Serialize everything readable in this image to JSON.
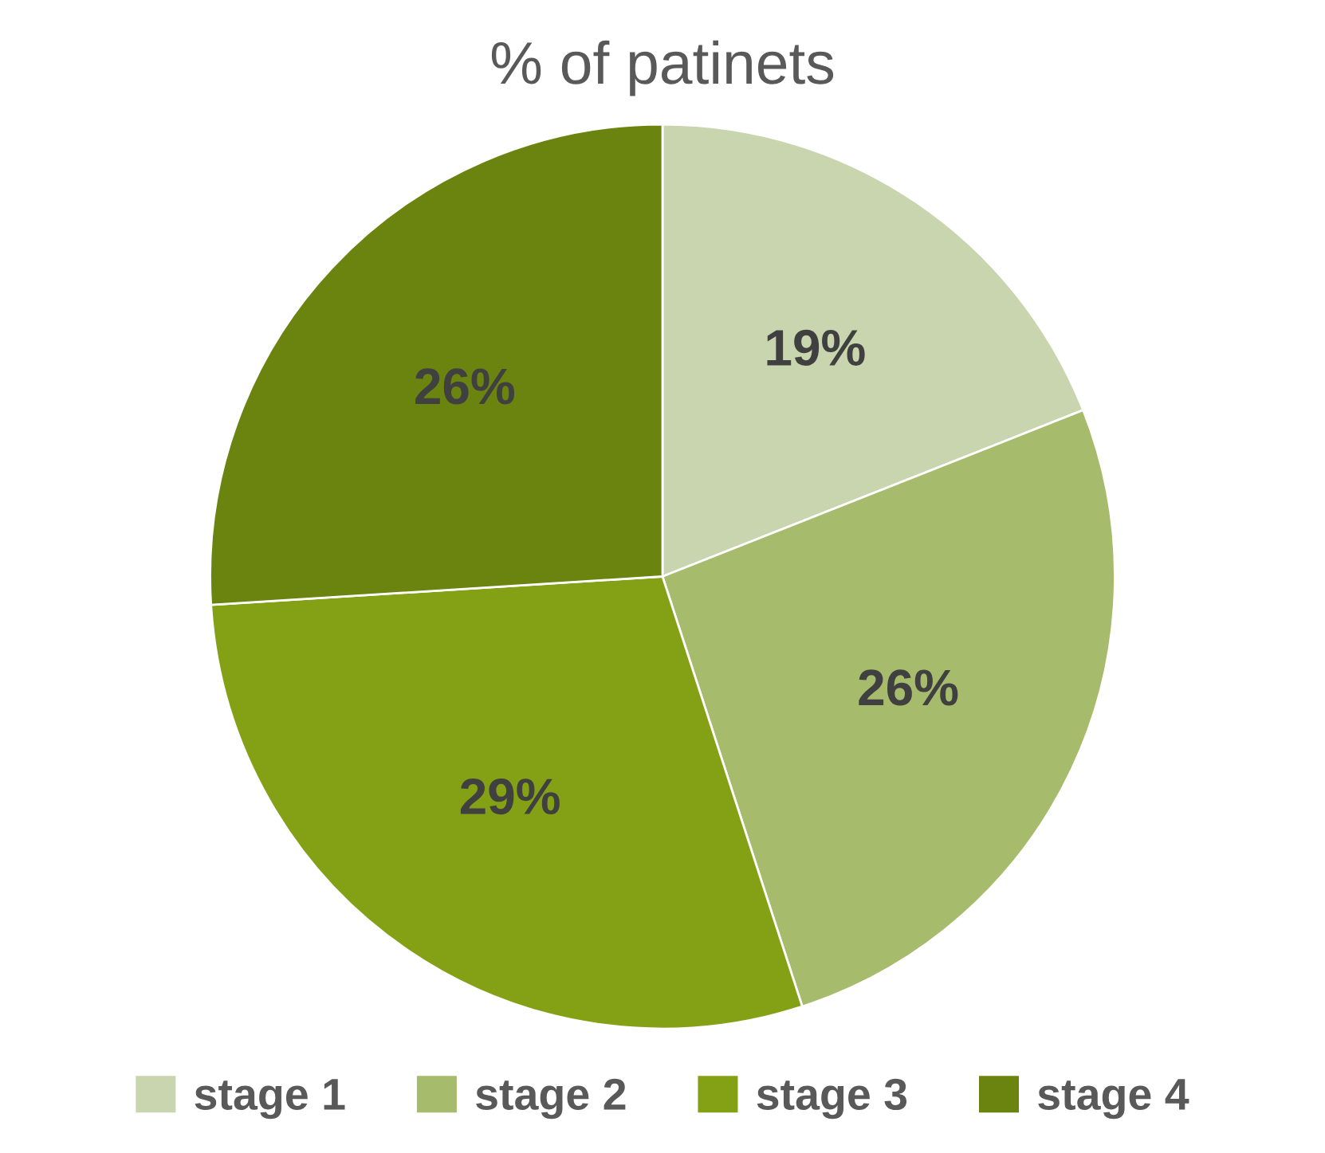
{
  "chart_data": {
    "type": "pie",
    "title": "% of patinets",
    "categories": [
      "stage 1",
      "stage 2",
      "stage 3",
      "stage 4"
    ],
    "values": [
      19,
      26,
      29,
      26
    ],
    "colors": [
      "#c9d5ae",
      "#a6bb6c",
      "#84a116",
      "#6b8410"
    ],
    "value_labels": [
      "19%",
      "26%",
      "29%",
      "26%"
    ],
    "legend": "bottom"
  }
}
